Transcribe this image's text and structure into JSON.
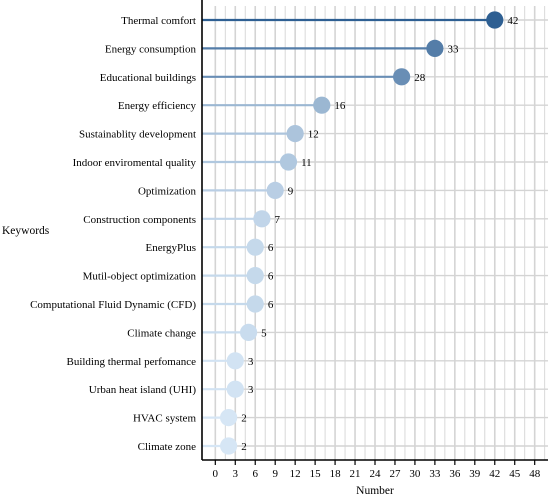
{
  "chart_data": {
    "type": "lollipop",
    "categories": [
      "Thermal comfort",
      "Energy consumption",
      "Educational buildings",
      "Energy efficiency",
      "Sustainablity development",
      "Indoor enviromental quality",
      "Optimization",
      "Construction components",
      "EnergyPlus",
      "Mutil-object optimization",
      "Computational Fluid Dynamic (CFD)",
      "Climate change",
      "Building thermal perfomance",
      "Urban heat island (UHI)",
      "HVAC system",
      "Climate zone"
    ],
    "values": [
      42,
      33,
      28,
      16,
      12,
      11,
      9,
      7,
      6,
      6,
      6,
      5,
      3,
      3,
      2,
      2
    ],
    "value_labels": [
      "42",
      "33",
      "28",
      "16",
      "12",
      "11",
      "9",
      "7",
      "6",
      "6",
      "6",
      "5",
      "3",
      "3",
      "2",
      "2"
    ],
    "xlabel": "Number",
    "ylabel": "Keywords",
    "xlim": [
      -2,
      50
    ],
    "xticks": [
      0,
      3,
      6,
      9,
      12,
      15,
      18,
      21,
      24,
      27,
      30,
      33,
      36,
      39,
      42,
      45,
      48
    ],
    "xtick_labels": [
      "0",
      "3",
      "6",
      "9",
      "12",
      "15",
      "18",
      "21",
      "24",
      "27",
      "30",
      "33",
      "36",
      "39",
      "42",
      "45",
      "48"
    ],
    "grid": true,
    "legend": "none",
    "colors": {
      "low": "#d6e6f5",
      "high": "#2e5f92",
      "grid": "#d4d4d4",
      "axis": "#000000"
    }
  }
}
